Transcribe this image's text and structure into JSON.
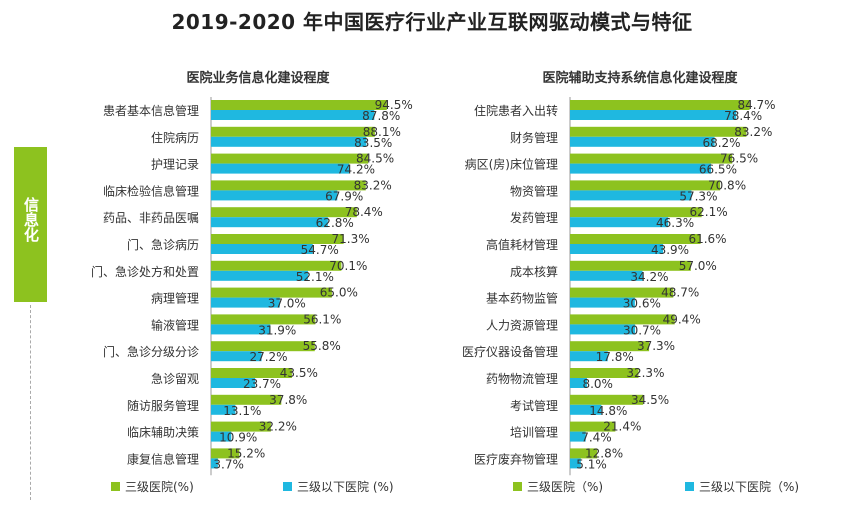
{
  "page_title": "2019-2020 年中国医疗行业产业互联网驱动模式与特征",
  "side_label": "信息化",
  "colors": {
    "green": "#8dc21f",
    "cyan": "#1fb8e0"
  },
  "chart_data": [
    {
      "type": "bar",
      "orientation": "horizontal",
      "title": "医院业务信息化建设程度",
      "categories": [
        "患者基本信息管理",
        "住院病历",
        "护理记录",
        "临床检验信息管理",
        "药品、非药品医嘱",
        "门、急诊病历",
        "门、急诊处方和处置",
        "病理管理",
        "输液管理",
        "门、急诊分级分诊",
        "急诊留观",
        "随访服务管理",
        "临床辅助决策",
        "康复信息管理"
      ],
      "series": [
        {
          "name": "三级医院(%)",
          "values": [
            94.5,
            88.1,
            84.5,
            83.2,
            78.4,
            71.3,
            70.1,
            65.0,
            56.1,
            55.8,
            43.5,
            37.8,
            32.2,
            15.2
          ]
        },
        {
          "name": "三级以下医院 (%)",
          "values": [
            87.8,
            83.5,
            74.2,
            67.9,
            62.8,
            54.7,
            52.1,
            37.0,
            31.9,
            27.2,
            23.7,
            13.1,
            10.9,
            3.7
          ]
        }
      ],
      "labels_green": [
        "94.5%",
        "88.1%",
        "84.5%",
        "83.2%",
        "78.4%",
        "71.3%",
        "70.1%",
        "65.0%",
        "56.1%",
        "55.8%",
        "43.5%",
        "37.8%",
        "32.2%",
        "15.2%"
      ],
      "labels_cyan": [
        "87.8%",
        "83.5%",
        "74.2%",
        "67.9%",
        "62.8%",
        "54.7%",
        "52.1%",
        "37.0%",
        "31.9%",
        "27.2%",
        "23.7%",
        "13.1%",
        "10.9%",
        "3.7%"
      ],
      "legend_placement": "bottom",
      "grid": false
    },
    {
      "type": "bar",
      "orientation": "horizontal",
      "title": "医院辅助支持系统信息化建设程度",
      "categories": [
        "住院患者入出转",
        "财务管理",
        "病区(房)床位管理",
        "物资管理",
        "发药管理",
        "高值耗材管理",
        "成本核算",
        "基本药物监管",
        "人力资源管理",
        "医疗仪器设备管理",
        "药物物流管理",
        "考试管理",
        "培训管理",
        "医疗废弃物管理"
      ],
      "series": [
        {
          "name": "三级医院（%)",
          "values": [
            84.7,
            83.2,
            76.5,
            70.8,
            62.1,
            61.6,
            57.0,
            48.7,
            49.4,
            37.3,
            32.3,
            34.5,
            21.4,
            12.8
          ]
        },
        {
          "name": "三级以下医院（%)",
          "values": [
            78.4,
            68.2,
            66.5,
            57.3,
            46.3,
            43.9,
            34.2,
            30.6,
            30.7,
            17.8,
            8.0,
            14.8,
            7.4,
            5.1
          ]
        }
      ],
      "labels_green": [
        "84.7%",
        "83.2%",
        "76.5%",
        "70.8%",
        "62.1%",
        "61.6%",
        "57.0%",
        "48.7%",
        "49.4%",
        "37.3%",
        "32.3%",
        "34.5%",
        "21.4%",
        "12.8%"
      ],
      "labels_cyan": [
        "78.4%",
        "68.2%",
        "66.5%",
        "57.3%",
        "46.3%",
        "43.9%",
        "34.2%",
        "30.6%",
        "30.7%",
        "17.8%",
        "8.0%",
        "14.8%",
        "7.4%",
        "5.1%"
      ],
      "legend_placement": "bottom",
      "grid": false
    }
  ]
}
